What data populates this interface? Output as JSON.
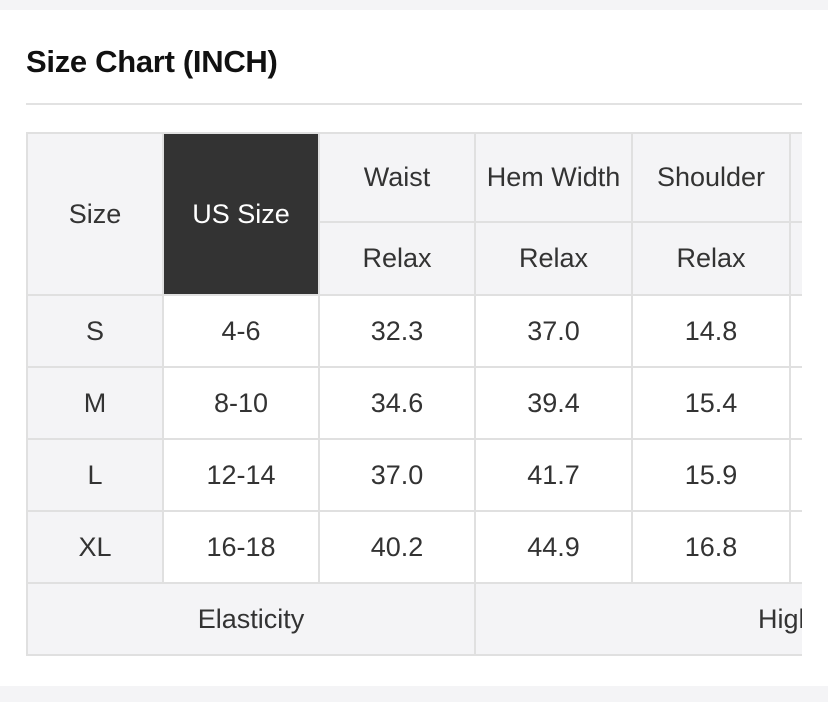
{
  "title": "Size Chart (INCH)",
  "table": {
    "headers": {
      "size": "Size",
      "us_size": "US Size",
      "waist": "Waist",
      "hem_width": "Hem Width",
      "shoulder": "Shoulder"
    },
    "subheaders": {
      "waist": "Relax",
      "hem_width": "Relax",
      "shoulder": "Relax"
    },
    "rows": [
      {
        "size": "S",
        "us_size": "4-6",
        "waist": "32.3",
        "hem_width": "37.0",
        "shoulder": "14.8"
      },
      {
        "size": "M",
        "us_size": "8-10",
        "waist": "34.6",
        "hem_width": "39.4",
        "shoulder": "15.4"
      },
      {
        "size": "L",
        "us_size": "12-14",
        "waist": "37.0",
        "hem_width": "41.7",
        "shoulder": "15.9"
      },
      {
        "size": "XL",
        "us_size": "16-18",
        "waist": "40.2",
        "hem_width": "44.9",
        "shoulder": "16.8"
      }
    ],
    "elasticity": {
      "label": "Elasticity",
      "value": "High"
    }
  }
}
